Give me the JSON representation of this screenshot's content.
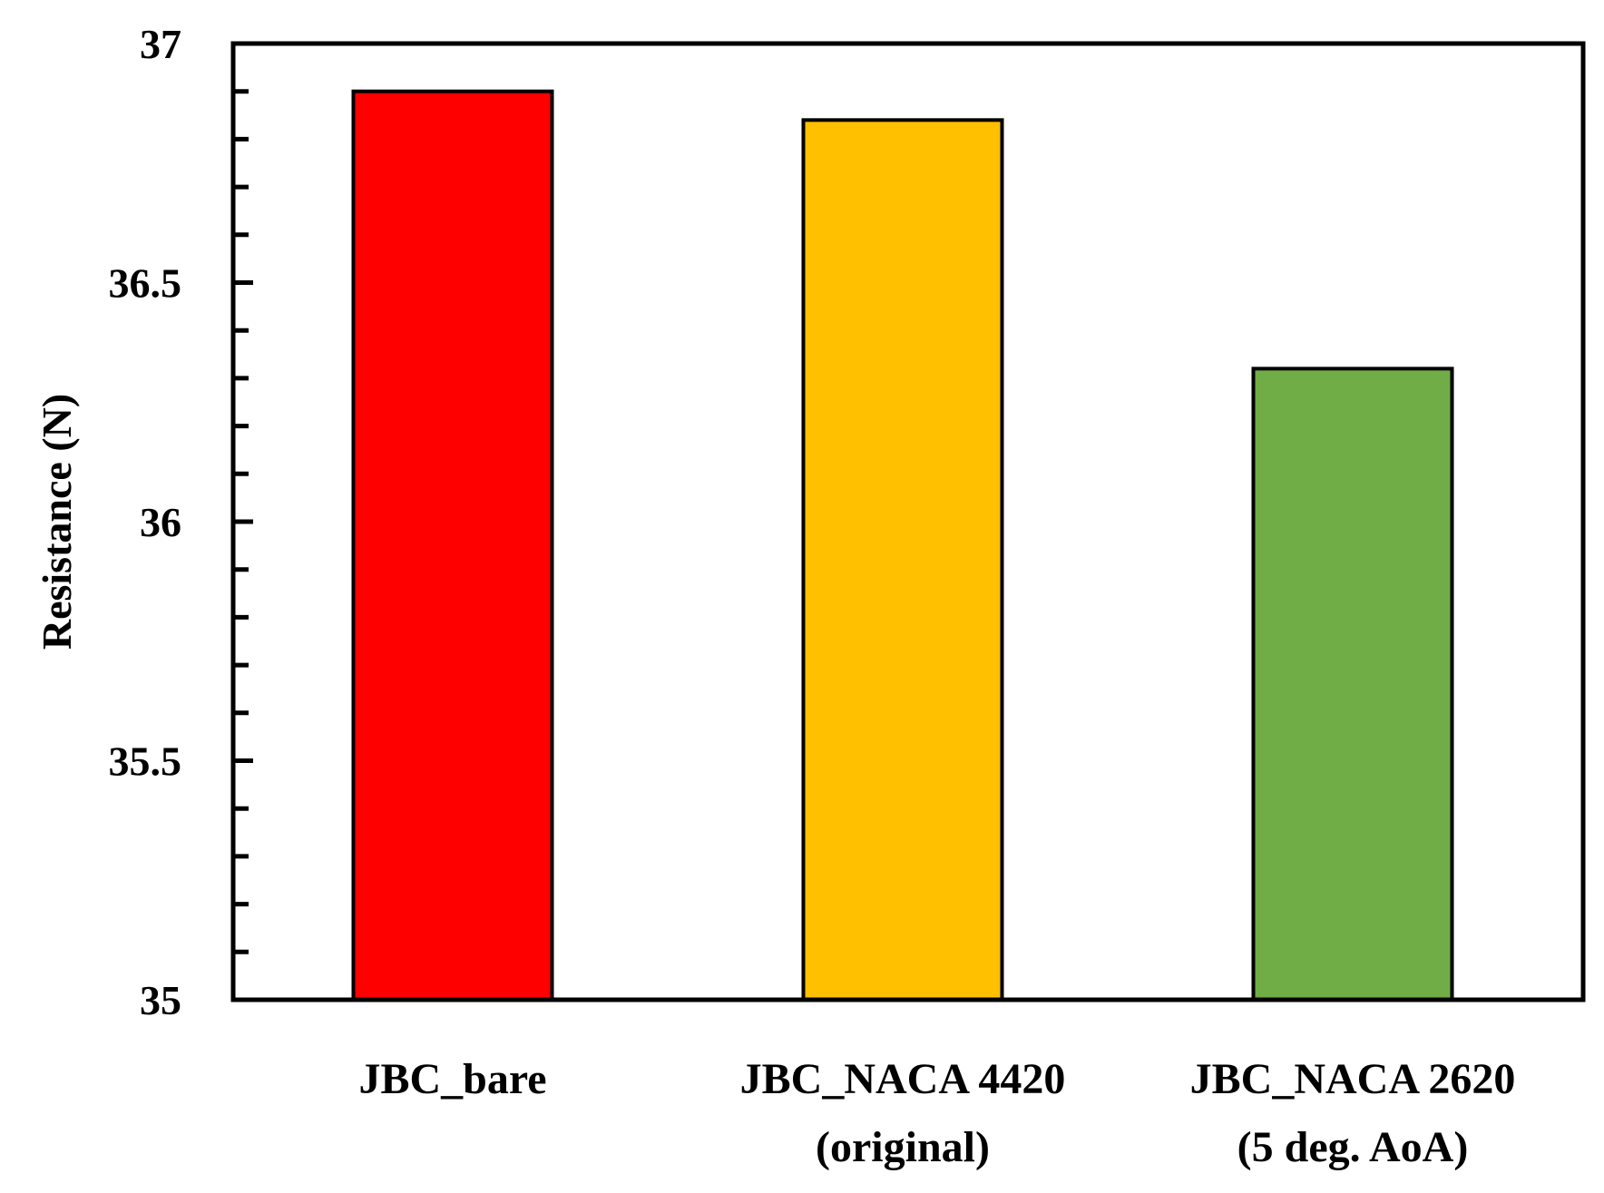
{
  "chart_data": {
    "type": "bar",
    "title": "",
    "xlabel": "",
    "ylabel": "Resistance (N)",
    "ylim": [
      35,
      37
    ],
    "yticks": [
      35,
      35.5,
      36,
      36.5,
      37
    ],
    "ytick_labels": [
      "35",
      "35.5",
      "36",
      "36.5",
      "37"
    ],
    "minor_tick_step": 0.1,
    "grid": false,
    "legend": null,
    "categories": [
      "JBC_bare",
      "JBC_NACA 4420 (original)",
      "JBC_NACA 2620 (5 deg. AoA)"
    ],
    "category_label_lines": [
      [
        "JBC_bare"
      ],
      [
        "JBC_NACA 4420",
        "(original)"
      ],
      [
        "JBC_NACA 2620",
        "(5 deg. AoA)"
      ]
    ],
    "values": [
      36.9,
      36.84,
      36.32
    ],
    "colors": [
      "#FF0000",
      "#FFC000",
      "#70AD47"
    ]
  }
}
